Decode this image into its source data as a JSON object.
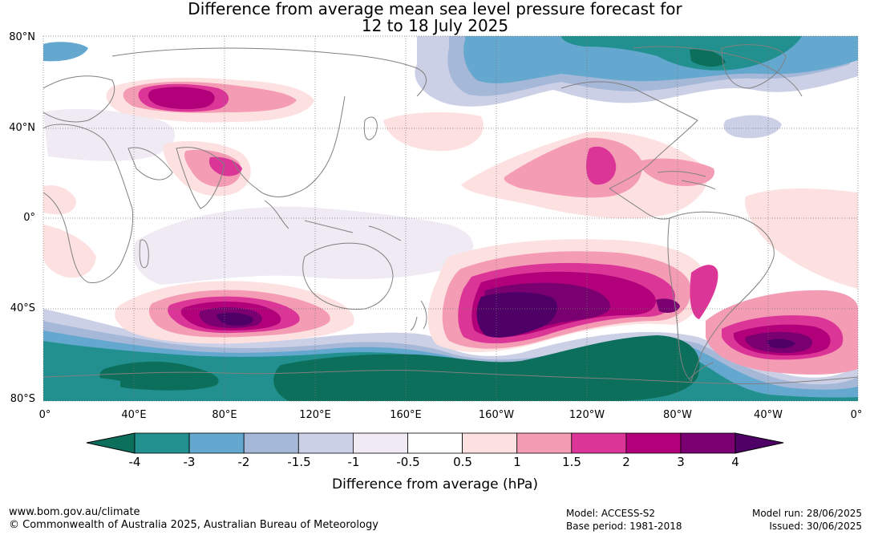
{
  "title_line1": "Difference from average mean sea level pressure forecast for",
  "title_line2": "12 to 18 July 2025",
  "lat_labels": [
    "80°N",
    "40°N",
    "0°",
    "40°S",
    "80°S"
  ],
  "lon_labels": [
    "0°",
    "40°E",
    "80°E",
    "120°E",
    "160°E",
    "160°W",
    "120°W",
    "80°W",
    "40°W",
    "0°"
  ],
  "colorbar": {
    "ticks": [
      "-4",
      "-3",
      "-2",
      "-1.5",
      "-1",
      "-0.5",
      "0.5",
      "1",
      "1.5",
      "2",
      "3",
      "4"
    ],
    "colors": [
      "#0b6f5b",
      "#21908f",
      "#64a8cf",
      "#a6b8d8",
      "#ccd0e6",
      "#efeaf4",
      "#ffffff",
      "#fde0e0",
      "#f59cb5",
      "#dc3598",
      "#b10079",
      "#7a0072",
      "#4e0066"
    ],
    "label": "Difference from average (hPa)"
  },
  "footer": {
    "url": "www.bom.gov.au/climate",
    "copyright": "© Commonwealth of Australia 2025, Australian Bureau of Meteorology",
    "model": "Model: ACCESS-S2",
    "base_period": "Base period: 1981-2018",
    "model_run": "Model run: 28/06/2025",
    "issued": "Issued: 30/06/2025"
  }
}
